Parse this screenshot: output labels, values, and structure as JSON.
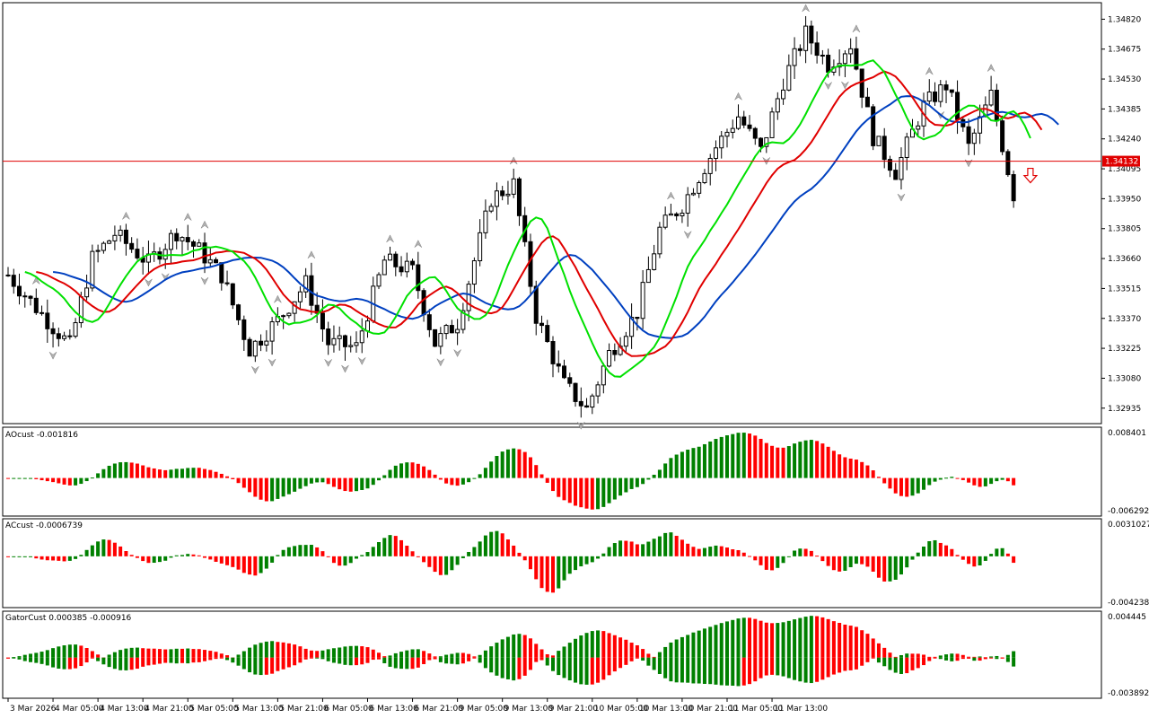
{
  "chart_data": [
    {
      "type": "candlestick",
      "panel": "main",
      "price_axis_ticks": [
        "1.34820",
        "1.34675",
        "1.34530",
        "1.34385",
        "1.34240",
        "1.34095",
        "1.33950",
        "1.33805",
        "1.33660",
        "1.33515",
        "1.33370",
        "1.33225",
        "1.33080",
        "1.32935"
      ],
      "price_range": [
        1.3286,
        1.349
      ],
      "current_price": "1.34132",
      "current_price_value": 1.34132,
      "down_arrow_signal": "sell",
      "candles_per_time_label": 8,
      "series": [
        {
          "name": "lips",
          "color": "#00e000"
        },
        {
          "name": "teeth",
          "color": "#e00000"
        },
        {
          "name": "jaw",
          "color": "#0040c0"
        }
      ],
      "time_labels": [
        "3 Mar 2026",
        "4 Mar 05:00",
        "4 Mar 13:00",
        "4 Mar 21:00",
        "5 Mar 05:00",
        "5 Mar 13:00",
        "5 Mar 21:00",
        "6 Mar 05:00",
        "6 Mar 13:00",
        "6 Mar 21:00",
        "9 Mar 05:00",
        "9 Mar 13:00",
        "9 Mar 21:00",
        "10 Mar 05:00",
        "10 Mar 13:00",
        "10 Mar 21:00",
        "11 Mar 05:00",
        "11 Mar 13:00"
      ]
    },
    {
      "type": "histogram",
      "panel": "ao",
      "label": "AOcust -0.001816",
      "axis_top": "0.008401",
      "axis_bottom": "-0.006292",
      "range": [
        -0.006292,
        0.008401
      ],
      "colors": {
        "up": "#008000",
        "down": "#ff0000"
      }
    },
    {
      "type": "histogram",
      "panel": "ac",
      "label": "ACcust -0.0006739",
      "axis_top": "0.0031027",
      "axis_bottom": "-0.0042382",
      "range": [
        -0.0042382,
        0.0031027
      ],
      "colors": {
        "up": "#008000",
        "down": "#ff0000"
      }
    },
    {
      "type": "histogram",
      "panel": "gator",
      "label": "GatorCust 0.000385 -0.000916",
      "axis_top": "0.004445",
      "axis_bottom": "-0.003892",
      "range": [
        -0.003892,
        0.004445
      ],
      "colors": {
        "up": "#008000",
        "down": "#ff0000"
      }
    }
  ]
}
